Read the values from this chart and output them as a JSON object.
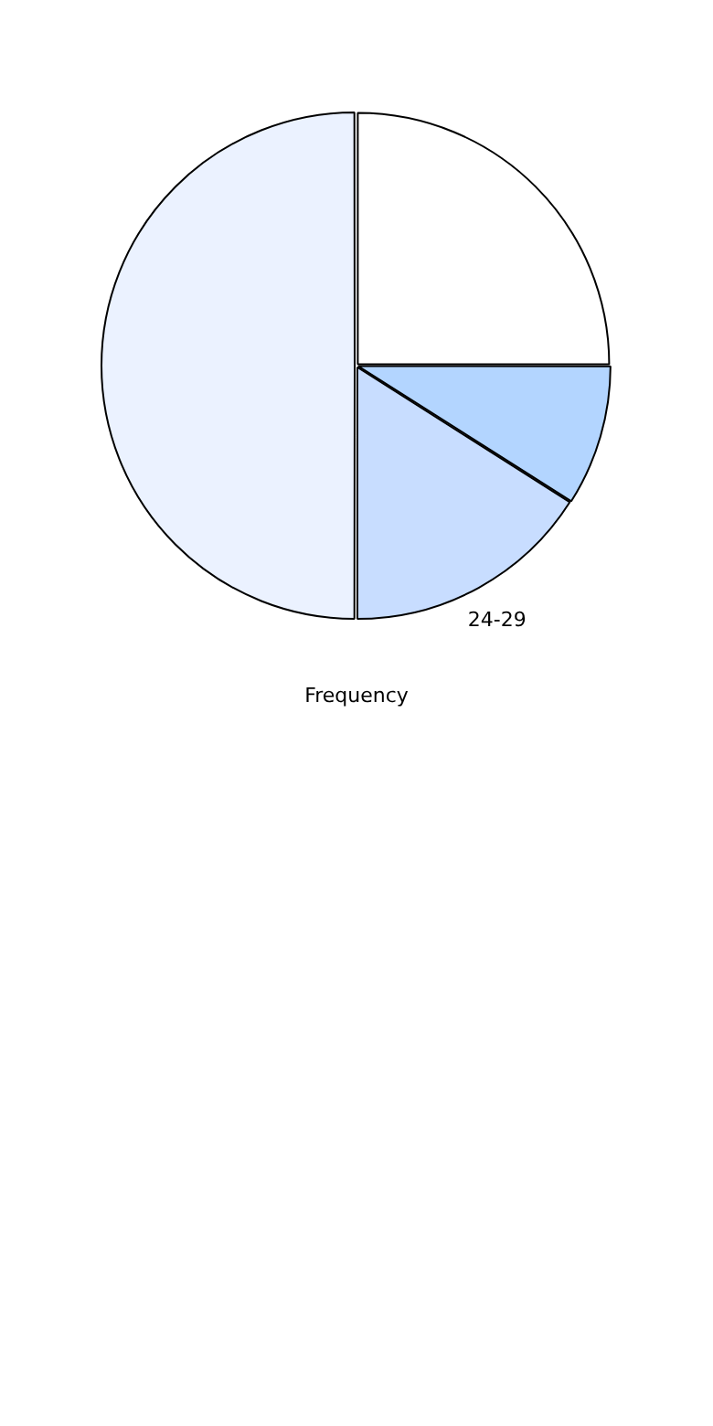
{
  "chart_data": {
    "type": "pie",
    "xlabel": "Frequency",
    "categories": [
      null,
      null,
      "24-29",
      null
    ],
    "values": [
      25,
      9,
      16,
      50
    ],
    "colors": [
      "#ffffff",
      "#b3d5ff",
      "#c8ddff",
      "#ebf2ff"
    ],
    "legend": false
  }
}
